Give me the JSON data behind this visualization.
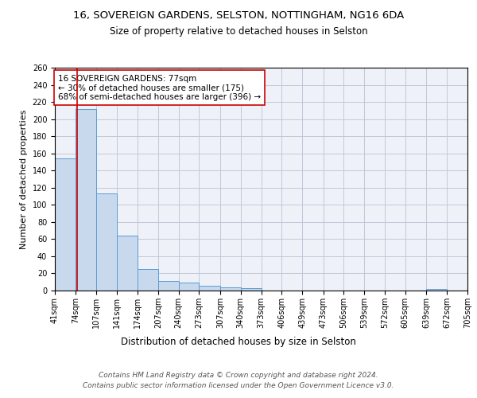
{
  "title1": "16, SOVEREIGN GARDENS, SELSTON, NOTTINGHAM, NG16 6DA",
  "title2": "Size of property relative to detached houses in Selston",
  "xlabel": "Distribution of detached houses by size in Selston",
  "ylabel": "Number of detached properties",
  "bar_edges": [
    41,
    74,
    107,
    141,
    174,
    207,
    240,
    273,
    307,
    340,
    373,
    406,
    439,
    473,
    506,
    539,
    572,
    605,
    639,
    672,
    705
  ],
  "bar_heights": [
    154,
    212,
    113,
    64,
    25,
    11,
    9,
    6,
    4,
    3,
    0,
    0,
    0,
    0,
    0,
    0,
    0,
    0,
    2,
    0,
    0
  ],
  "bar_color": "#c9d9ed",
  "bar_edge_color": "#5b9bd5",
  "grid_color": "#c0c8d8",
  "bg_color": "#eef2f8",
  "vline_x": 77,
  "vline_color": "#cc0000",
  "annotation_text": "16 SOVEREIGN GARDENS: 77sqm\n← 30% of detached houses are smaller (175)\n68% of semi-detached houses are larger (396) →",
  "annotation_box_color": "white",
  "annotation_box_edge": "#cc0000",
  "ylim": [
    0,
    260
  ],
  "yticks": [
    0,
    20,
    40,
    60,
    80,
    100,
    120,
    140,
    160,
    180,
    200,
    220,
    240,
    260
  ],
  "tick_labels": [
    "41sqm",
    "74sqm",
    "107sqm",
    "141sqm",
    "174sqm",
    "207sqm",
    "240sqm",
    "273sqm",
    "307sqm",
    "340sqm",
    "373sqm",
    "406sqm",
    "439sqm",
    "473sqm",
    "506sqm",
    "539sqm",
    "572sqm",
    "605sqm",
    "639sqm",
    "672sqm",
    "705sqm"
  ],
  "footer": "Contains HM Land Registry data © Crown copyright and database right 2024.\nContains public sector information licensed under the Open Government Licence v3.0.",
  "title1_fontsize": 9.5,
  "title2_fontsize": 8.5,
  "xlabel_fontsize": 8.5,
  "ylabel_fontsize": 8,
  "tick_fontsize": 7,
  "footer_fontsize": 6.5,
  "annot_fontsize": 7.5
}
